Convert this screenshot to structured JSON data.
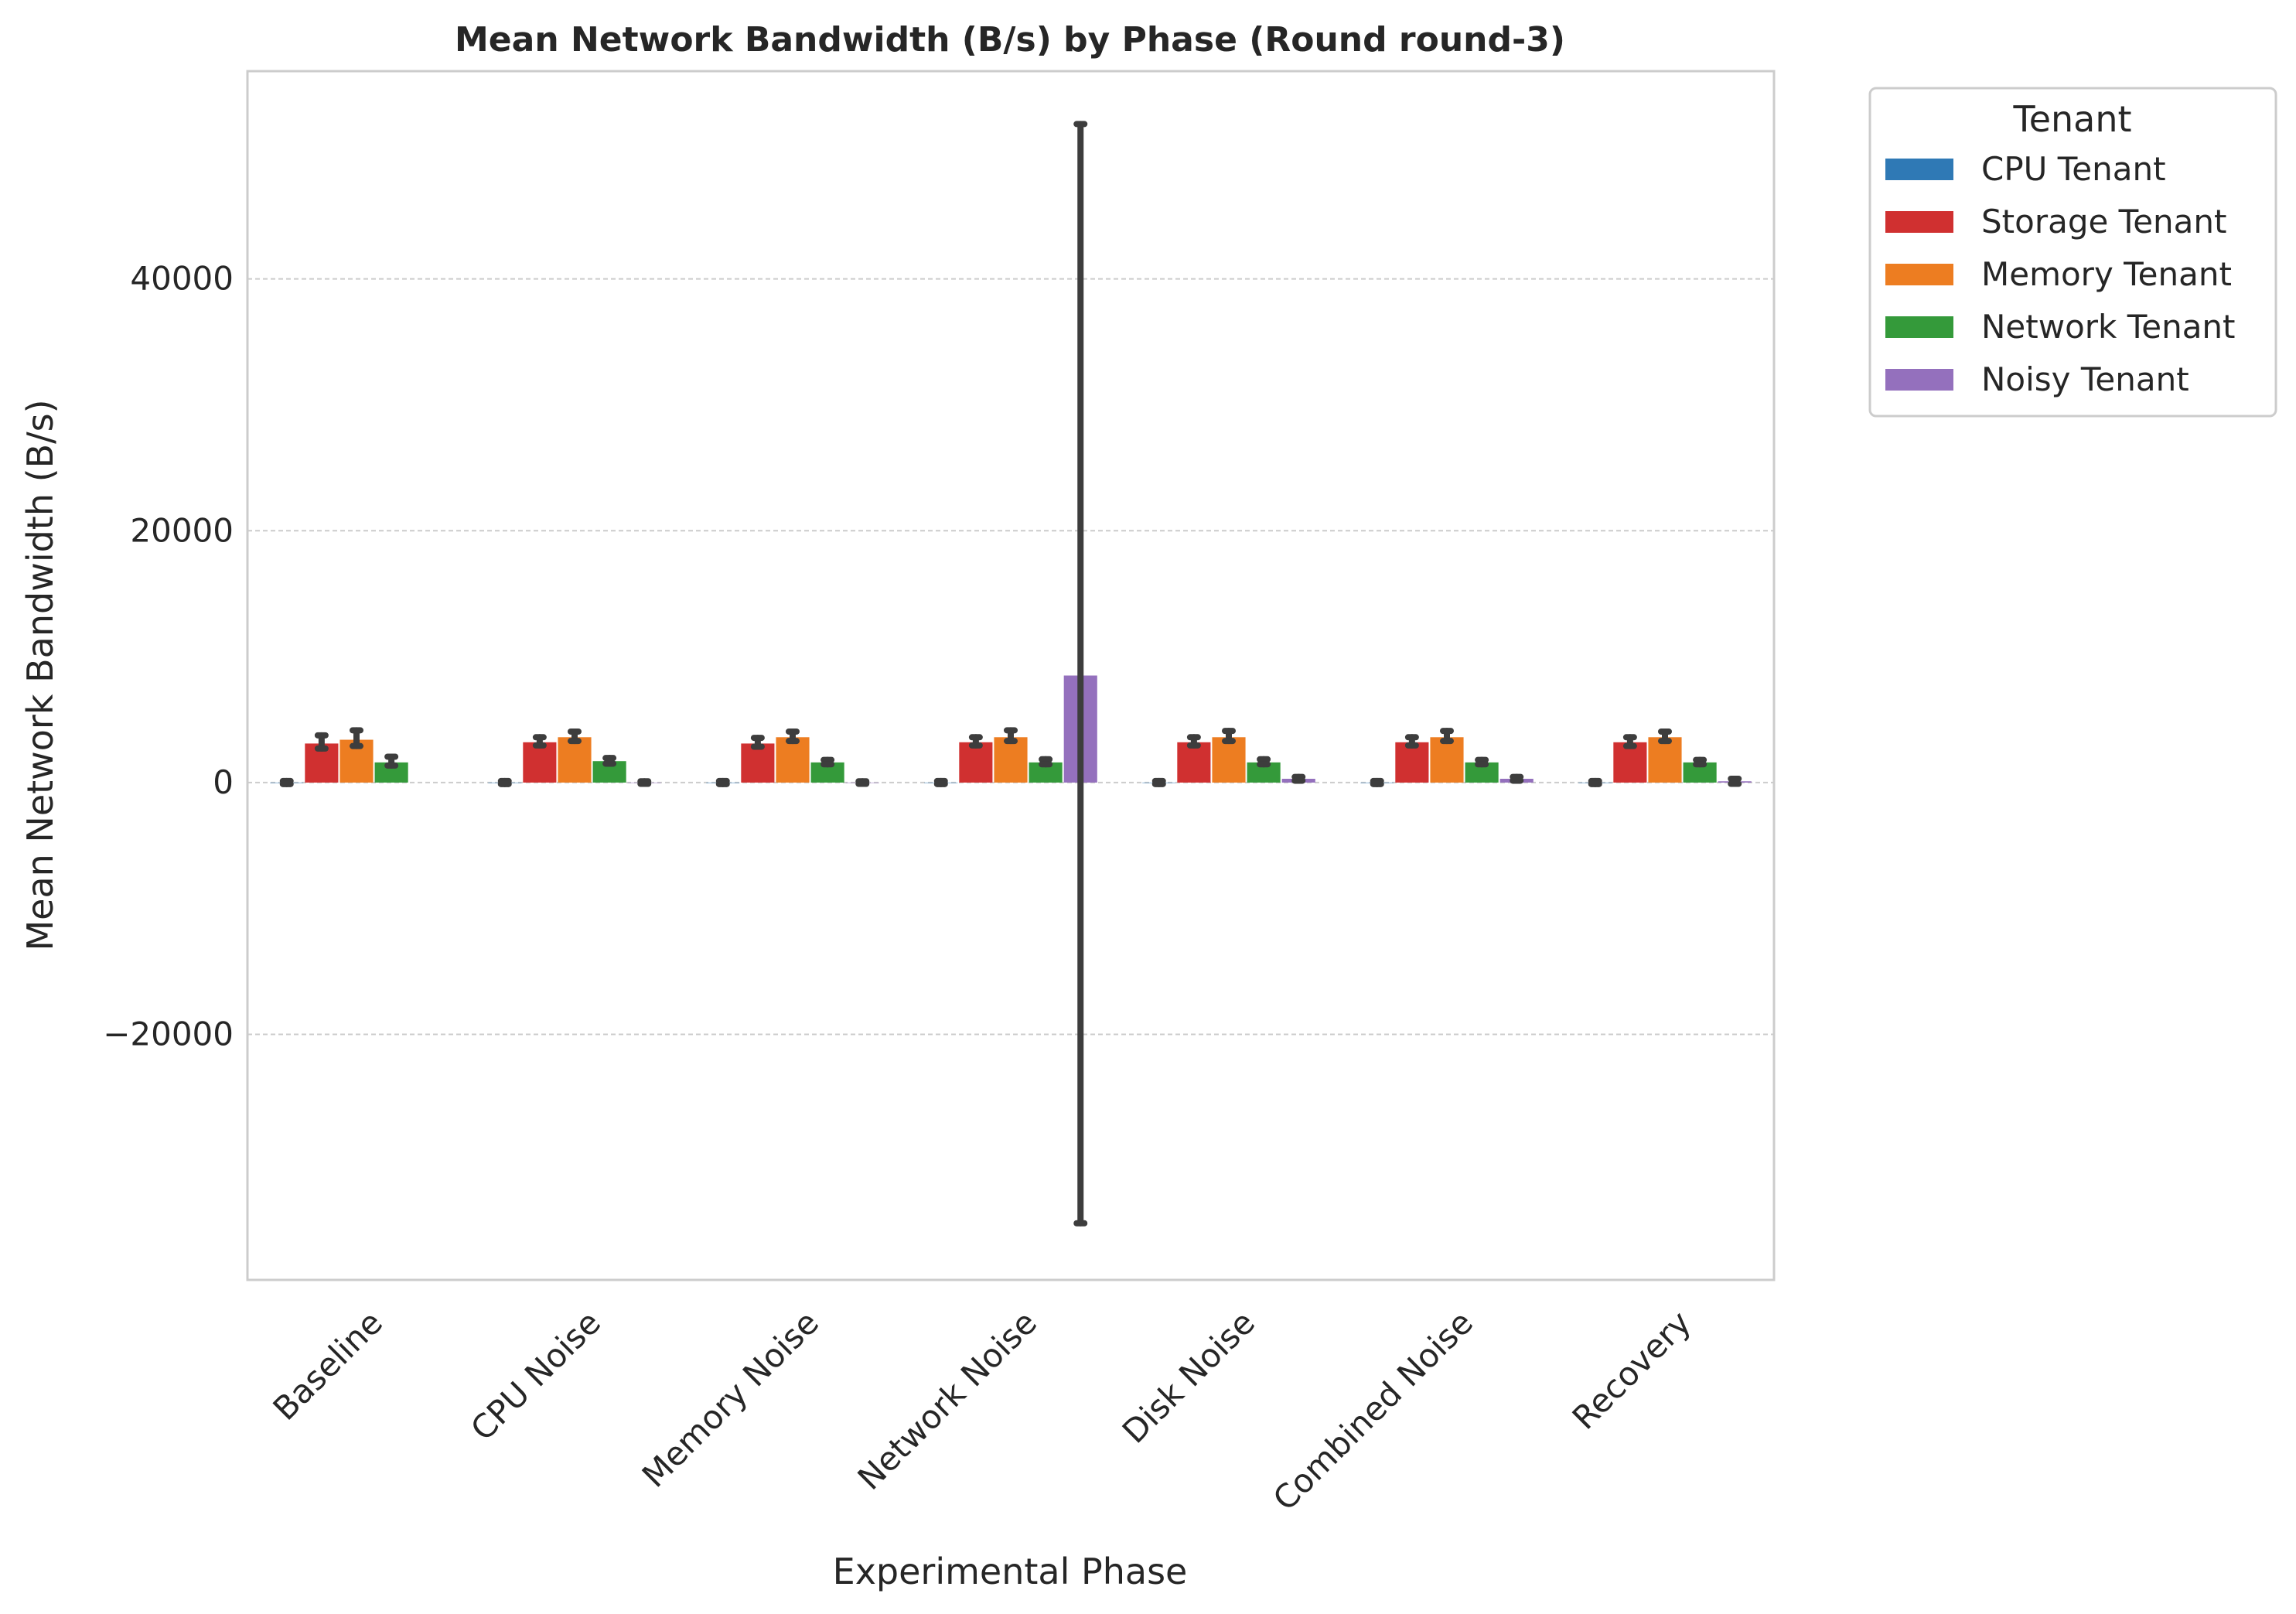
{
  "chart_data": {
    "type": "bar",
    "title": "Mean Network Bandwidth (B/s) by Phase (Round round-3)",
    "xlabel": "Experimental Phase",
    "ylabel": "Mean Network Bandwidth (B/s)",
    "ylim": [
      -39500,
      56500
    ],
    "yticks": [
      "40000",
      "20000",
      "0",
      "−20000"
    ],
    "ytick_values": [
      40000,
      20000,
      0,
      -20000
    ],
    "grid": "y-dashed",
    "legend_title": "Tenant",
    "legend_position": "outside-right",
    "categories": [
      "Baseline",
      "CPU Noise",
      "Memory Noise",
      "Network Noise",
      "Disk Noise",
      "Combined Noise",
      "Recovery"
    ],
    "series": [
      {
        "name": "CPU Tenant",
        "color": "#2f79b5",
        "values": [
          0,
          0,
          0,
          0,
          0,
          0,
          0
        ],
        "error_low": [
          -120,
          -120,
          -120,
          -120,
          -120,
          -120,
          -120
        ],
        "error_high": [
          120,
          120,
          120,
          120,
          120,
          120,
          120
        ]
      },
      {
        "name": "Storage Tenant",
        "color": "#d03030",
        "values": [
          3100,
          3200,
          3100,
          3200,
          3200,
          3200,
          3200
        ],
        "error_low": [
          2700,
          2950,
          2850,
          2950,
          2950,
          2950,
          2900
        ],
        "error_high": [
          3750,
          3600,
          3550,
          3600,
          3600,
          3600,
          3600
        ]
      },
      {
        "name": "Memory Tenant",
        "color": "#ed7d21",
        "values": [
          3400,
          3600,
          3600,
          3600,
          3600,
          3600,
          3600
        ],
        "error_low": [
          2900,
          3300,
          3300,
          3300,
          3300,
          3300,
          3300
        ],
        "error_high": [
          4150,
          4050,
          4050,
          4150,
          4100,
          4100,
          4050
        ]
      },
      {
        "name": "Network Tenant",
        "color": "#349a3a",
        "values": [
          1600,
          1700,
          1600,
          1600,
          1600,
          1600,
          1600
        ],
        "error_low": [
          1350,
          1500,
          1450,
          1450,
          1450,
          1450,
          1450
        ],
        "error_high": [
          2050,
          1950,
          1800,
          1850,
          1850,
          1800,
          1800
        ]
      },
      {
        "name": "Noisy Tenant",
        "color": "#9470bd",
        "values": [
          null,
          0,
          0,
          8500,
          300,
          300,
          100
        ],
        "error_low": [
          null,
          -100,
          -100,
          -35000,
          150,
          150,
          -100
        ],
        "error_high": [
          null,
          100,
          100,
          52300,
          450,
          450,
          300
        ]
      }
    ]
  }
}
